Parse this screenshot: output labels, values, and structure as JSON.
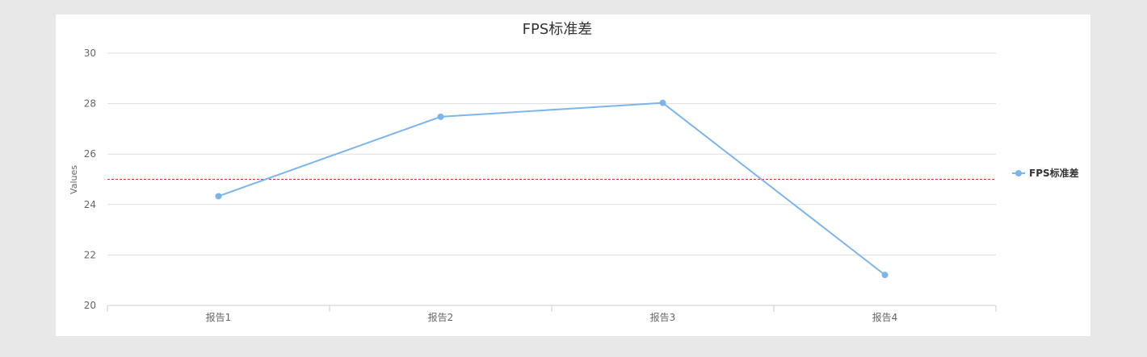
{
  "chart_data": {
    "type": "line",
    "title": "FPS标准差",
    "xlabel": "",
    "ylabel": "Values",
    "categories": [
      "报告1",
      "报告2",
      "报告3",
      "报告4"
    ],
    "series": [
      {
        "name": "FPS标准差",
        "values": [
          24.33,
          27.48,
          28.03,
          21.21
        ],
        "color": "#7cb5ec"
      }
    ],
    "ylim": [
      20,
      30
    ],
    "yticks": [
      20,
      22,
      24,
      26,
      28,
      30
    ],
    "plot_line": {
      "value": 25,
      "color": "#c0392b",
      "style": "dashed"
    },
    "grid": true,
    "legend": "right"
  }
}
